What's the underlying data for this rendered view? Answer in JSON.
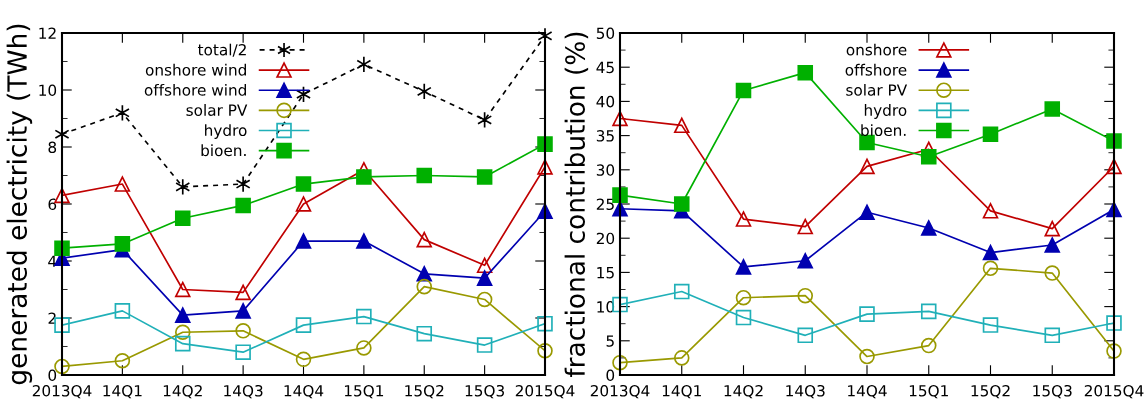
{
  "chart_data": [
    {
      "type": "line",
      "ylabel": "generated electricity (TWh)",
      "categories": [
        "2013Q4",
        "14Q1",
        "14Q2",
        "14Q3",
        "14Q4",
        "15Q1",
        "15Q2",
        "15Q3",
        "2015Q4"
      ],
      "ylim": [
        0,
        12
      ],
      "yticks": [
        0,
        2,
        4,
        6,
        8,
        10,
        12
      ],
      "legend": "top",
      "series": [
        {
          "name": "total/2",
          "color": "#000000",
          "marker": "cross",
          "line_style": "dashed",
          "values": [
            8.45,
            9.2,
            6.6,
            6.7,
            9.85,
            10.9,
            9.95,
            8.95,
            11.9
          ]
        },
        {
          "name": "onshore wind",
          "color": "#c00000",
          "marker": "triangle",
          "line_style": "solid",
          "values": [
            6.3,
            6.7,
            3.0,
            2.9,
            6.0,
            7.2,
            4.75,
            3.85,
            7.3
          ]
        },
        {
          "name": "offshore wind",
          "color": "#0000b0",
          "marker": "triangle",
          "line_style": "solid",
          "values": [
            4.1,
            4.4,
            2.1,
            2.25,
            4.7,
            4.7,
            3.55,
            3.4,
            5.75
          ]
        },
        {
          "name": "solar PV",
          "color": "#999900",
          "marker": "circle",
          "line_style": "solid",
          "values": [
            0.3,
            0.5,
            1.5,
            1.55,
            0.55,
            0.95,
            3.1,
            2.65,
            0.85
          ]
        },
        {
          "name": "hydro",
          "color": "#20b0b8",
          "marker": "square",
          "line_style": "solid",
          "values": [
            1.75,
            2.25,
            1.1,
            0.8,
            1.75,
            2.05,
            1.45,
            1.05,
            1.8
          ]
        },
        {
          "name": "bioen.",
          "color": "#00b000",
          "marker": "square",
          "line_style": "solid",
          "values": [
            4.45,
            4.6,
            5.5,
            5.95,
            6.7,
            6.95,
            7.0,
            6.95,
            8.1
          ]
        }
      ]
    },
    {
      "type": "line",
      "ylabel": "fractional contribution (%)",
      "categories": [
        "2013Q4",
        "14Q1",
        "14Q2",
        "14Q3",
        "14Q4",
        "15Q1",
        "15Q2",
        "15Q3",
        "2015Q4"
      ],
      "ylim": [
        0,
        50
      ],
      "yticks": [
        0,
        5,
        10,
        15,
        20,
        25,
        30,
        35,
        40,
        45,
        50
      ],
      "legend": "top",
      "series": [
        {
          "name": "onshore",
          "color": "#c00000",
          "marker": "triangle",
          "line_style": "solid",
          "values": [
            37.5,
            36.5,
            22.8,
            21.7,
            30.5,
            33.0,
            24.0,
            21.4,
            30.5
          ]
        },
        {
          "name": "offshore",
          "color": "#0000b0",
          "marker": "triangle",
          "line_style": "solid",
          "values": [
            24.3,
            24.0,
            15.8,
            16.7,
            23.8,
            21.5,
            17.9,
            19.0,
            24.2
          ]
        },
        {
          "name": "solar PV",
          "color": "#999900",
          "marker": "circle",
          "line_style": "solid",
          "values": [
            1.8,
            2.5,
            11.3,
            11.6,
            2.7,
            4.3,
            15.6,
            14.9,
            3.5
          ]
        },
        {
          "name": "hydro",
          "color": "#20b0b8",
          "marker": "square",
          "line_style": "solid",
          "values": [
            10.3,
            12.2,
            8.4,
            5.8,
            8.9,
            9.3,
            7.3,
            5.8,
            7.6
          ]
        },
        {
          "name": "bioen.",
          "color": "#00b000",
          "marker": "square",
          "line_style": "solid",
          "values": [
            26.3,
            25.0,
            41.6,
            44.2,
            34.0,
            31.9,
            35.2,
            38.9,
            34.2
          ]
        }
      ]
    }
  ]
}
